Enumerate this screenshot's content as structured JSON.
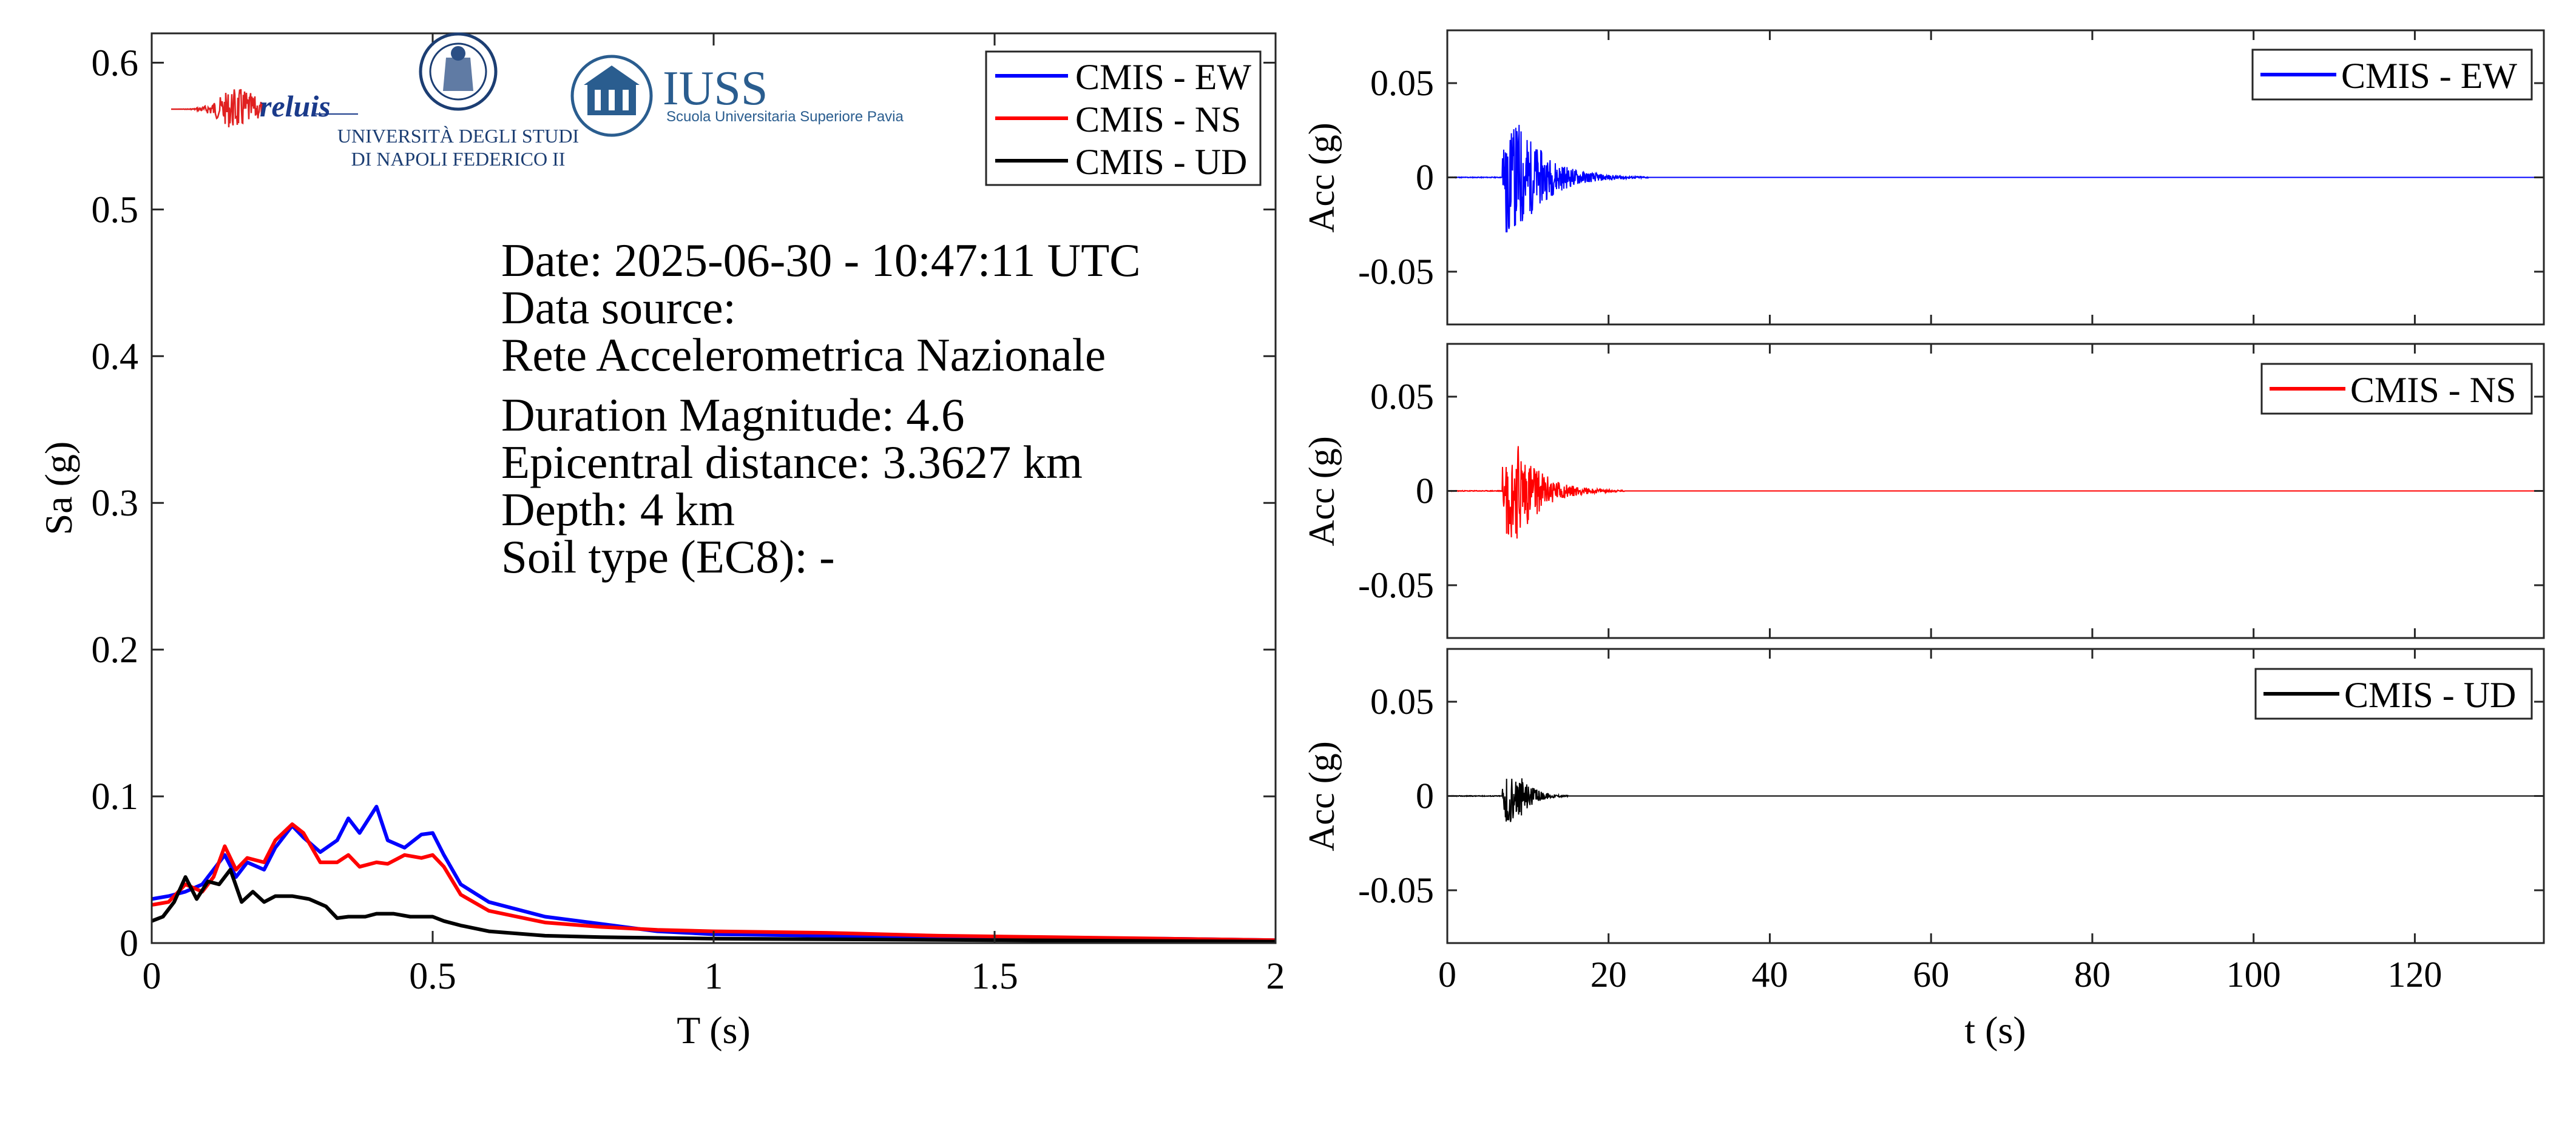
{
  "logos": {
    "reluis": "reluis",
    "unina_line1": "UNIVERSITÀ DEGLI STUDI",
    "unina_line2": "DI NAPOLI FEDERICO II",
    "iuss": "IUSS",
    "iuss_sub": "Scuola Universitaria Superiore Pavia"
  },
  "info": {
    "date": "Date: 2025-06-30 - 10:47:11 UTC",
    "source_label": "Data source:",
    "source_name": "Rete Accelerometrica Nazionale",
    "magnitude": "Duration Magnitude: 4.6",
    "distance": "Epicentral distance: 3.3627 km",
    "depth": "Depth: 4 km",
    "soil": "Soil type (EC8): -"
  },
  "chart_data": [
    {
      "type": "line",
      "id": "spectrum",
      "xlabel": "T (s)",
      "ylabel": "Sa (g)",
      "xlim": [
        0,
        2
      ],
      "ylim": [
        0,
        0.62
      ],
      "xticks": [
        0,
        0.5,
        1,
        1.5,
        2
      ],
      "xtick_labels": [
        "0",
        "0.5",
        "1",
        "1.5",
        "2"
      ],
      "yticks": [
        0,
        0.1,
        0.2,
        0.3,
        0.4,
        0.5,
        0.6
      ],
      "ytick_labels": [
        "0",
        "0.1",
        "0.2",
        "0.3",
        "0.4",
        "0.5",
        "0.6"
      ],
      "grid": false,
      "legend_position": "top-right",
      "series": [
        {
          "name": "CMIS - EW",
          "color": "#0000ff",
          "x": [
            0,
            0.03,
            0.06,
            0.09,
            0.11,
            0.13,
            0.15,
            0.17,
            0.2,
            0.22,
            0.25,
            0.27,
            0.3,
            0.33,
            0.35,
            0.37,
            0.4,
            0.42,
            0.45,
            0.48,
            0.5,
            0.52,
            0.55,
            0.6,
            0.7,
            0.8,
            0.9,
            1.0,
            1.2,
            1.4,
            1.6,
            1.8,
            2.0
          ],
          "y": [
            0.03,
            0.032,
            0.035,
            0.04,
            0.05,
            0.06,
            0.045,
            0.055,
            0.05,
            0.065,
            0.08,
            0.072,
            0.062,
            0.07,
            0.085,
            0.075,
            0.093,
            0.07,
            0.065,
            0.074,
            0.075,
            0.06,
            0.04,
            0.028,
            0.018,
            0.013,
            0.008,
            0.006,
            0.005,
            0.004,
            0.003,
            0.003,
            0.002
          ]
        },
        {
          "name": "CMIS - NS",
          "color": "#ff0000",
          "x": [
            0,
            0.03,
            0.06,
            0.09,
            0.11,
            0.13,
            0.15,
            0.17,
            0.2,
            0.22,
            0.25,
            0.27,
            0.3,
            0.33,
            0.35,
            0.37,
            0.4,
            0.42,
            0.45,
            0.48,
            0.5,
            0.52,
            0.55,
            0.6,
            0.7,
            0.8,
            0.9,
            1.0,
            1.2,
            1.4,
            1.6,
            1.8,
            2.0
          ],
          "y": [
            0.026,
            0.028,
            0.04,
            0.035,
            0.045,
            0.066,
            0.05,
            0.058,
            0.055,
            0.07,
            0.081,
            0.075,
            0.055,
            0.055,
            0.06,
            0.052,
            0.055,
            0.054,
            0.06,
            0.058,
            0.06,
            0.052,
            0.033,
            0.022,
            0.014,
            0.011,
            0.009,
            0.008,
            0.007,
            0.005,
            0.004,
            0.003,
            0.002
          ]
        },
        {
          "name": "CMIS - UD",
          "color": "#000000",
          "x": [
            0,
            0.02,
            0.04,
            0.06,
            0.08,
            0.1,
            0.12,
            0.14,
            0.16,
            0.18,
            0.2,
            0.22,
            0.25,
            0.28,
            0.31,
            0.33,
            0.35,
            0.38,
            0.4,
            0.43,
            0.46,
            0.5,
            0.52,
            0.55,
            0.6,
            0.7,
            0.8,
            1.0,
            1.5,
            2.0
          ],
          "y": [
            0.015,
            0.018,
            0.028,
            0.045,
            0.03,
            0.042,
            0.04,
            0.05,
            0.028,
            0.035,
            0.028,
            0.032,
            0.032,
            0.03,
            0.025,
            0.017,
            0.018,
            0.018,
            0.02,
            0.02,
            0.018,
            0.018,
            0.015,
            0.012,
            0.008,
            0.005,
            0.004,
            0.003,
            0.002,
            0.001
          ]
        }
      ]
    },
    {
      "type": "line",
      "id": "acc-ew",
      "ylabel": "Acc (g)",
      "xlim": [
        0,
        136
      ],
      "ylim": [
        -0.078,
        0.078
      ],
      "xticks": [
        0,
        20,
        40,
        60,
        80,
        100,
        120
      ],
      "yticks": [
        -0.05,
        0,
        0.05
      ],
      "ytick_labels": [
        "-0.05",
        "0",
        "0.05"
      ],
      "legend_position": "top-right",
      "series": [
        {
          "name": "CMIS - EW",
          "color": "#0000ff",
          "t_start": 6.8,
          "peak": 0.031,
          "decay_end": 25
        }
      ]
    },
    {
      "type": "line",
      "id": "acc-ns",
      "ylabel": "Acc (g)",
      "xlim": [
        0,
        136
      ],
      "ylim": [
        -0.078,
        0.078
      ],
      "xticks": [
        0,
        20,
        40,
        60,
        80,
        100,
        120
      ],
      "yticks": [
        -0.05,
        0,
        0.05
      ],
      "ytick_labels": [
        "-0.05",
        "0",
        "0.05"
      ],
      "legend_position": "top-right",
      "series": [
        {
          "name": "CMIS - NS",
          "color": "#ff0000",
          "t_start": 6.8,
          "peak": 0.027,
          "decay_end": 22
        }
      ]
    },
    {
      "type": "line",
      "id": "acc-ud",
      "xlabel": "t (s)",
      "ylabel": "Acc (g)",
      "xlim": [
        0,
        136
      ],
      "ylim": [
        -0.078,
        0.078
      ],
      "xticks": [
        0,
        20,
        40,
        60,
        80,
        100,
        120
      ],
      "xtick_labels": [
        "0",
        "20",
        "40",
        "60",
        "80",
        "100",
        "120"
      ],
      "yticks": [
        -0.05,
        0,
        0.05
      ],
      "ytick_labels": [
        "-0.05",
        "0",
        "0.05"
      ],
      "legend_position": "top-right",
      "series": [
        {
          "name": "CMIS - UD",
          "color": "#000000",
          "t_start": 6.8,
          "peak": 0.014,
          "decay_end": 15
        }
      ]
    }
  ]
}
